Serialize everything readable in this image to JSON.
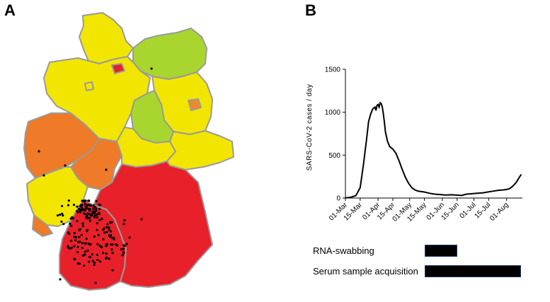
{
  "panels": {
    "a": "A",
    "b": "B"
  },
  "map": {
    "regions": [
      {
        "name": "Schleswig-Holstein",
        "color": "#f2e600"
      },
      {
        "name": "Hamburg",
        "color": "#e8202a"
      },
      {
        "name": "Mecklenburg-Vorpommern",
        "color": "#a8d62e"
      },
      {
        "name": "Lower Saxony",
        "color": "#f2e600"
      },
      {
        "name": "Bremen",
        "color": "#f2e600"
      },
      {
        "name": "Brandenburg",
        "color": "#f2e600"
      },
      {
        "name": "Berlin",
        "color": "#ef8a2a"
      },
      {
        "name": "Saxony-Anhalt",
        "color": "#a8d62e"
      },
      {
        "name": "North Rhine-Westphalia",
        "color": "#ef7a28"
      },
      {
        "name": "Hesse",
        "color": "#ef7a28"
      },
      {
        "name": "Thuringia",
        "color": "#f2e600"
      },
      {
        "name": "Saxony",
        "color": "#f2e600"
      },
      {
        "name": "Rhineland-Palatinate",
        "color": "#f2e600"
      },
      {
        "name": "Saarland",
        "color": "#ef7a28"
      },
      {
        "name": "Baden-Wuerttemberg",
        "color": "#e8202a"
      },
      {
        "name": "Bavaria",
        "color": "#e8202a"
      }
    ]
  },
  "chart_data": {
    "type": "line",
    "title": "",
    "xlabel": "",
    "ylabel": "SARS-CoV-2 cases / day",
    "ylim": [
      0,
      1500
    ],
    "yticks": [
      0,
      500,
      1000,
      1500
    ],
    "ytick_labels": [
      "0",
      "500",
      "1000",
      "1500"
    ],
    "xlim": [
      0,
      168
    ],
    "xticks": [
      0,
      14,
      31,
      45,
      61,
      75,
      92,
      106,
      122,
      136,
      153
    ],
    "xtick_labels": [
      "01-Mar",
      "15-Mar",
      "01-Apr",
      "15-Apr",
      "01-May",
      "15-May",
      "01-Jun",
      "15-Jun",
      "01-Jul",
      "15-Jul",
      "01-Aug"
    ],
    "series": [
      {
        "name": "SARS-CoV-2 cases / day",
        "x": [
          0,
          5,
          10,
          14,
          17,
          20,
          22,
          24,
          26,
          28,
          29,
          30,
          31,
          32,
          33,
          34,
          35,
          36,
          37,
          38,
          40,
          42,
          45,
          48,
          51,
          54,
          57,
          60,
          63,
          66,
          69,
          72,
          75,
          80,
          85,
          90,
          95,
          100,
          105,
          110,
          115,
          120,
          125,
          130,
          135,
          140,
          145,
          150,
          153,
          156,
          159,
          162,
          165,
          167
        ],
        "y": [
          2,
          8,
          30,
          120,
          380,
          680,
          890,
          980,
          1040,
          1060,
          1020,
          1080,
          1090,
          1060,
          1110,
          1100,
          1060,
          980,
          880,
          770,
          660,
          600,
          570,
          520,
          430,
          330,
          240,
          170,
          120,
          95,
          80,
          75,
          70,
          55,
          45,
          40,
          35,
          38,
          35,
          30,
          45,
          50,
          55,
          60,
          70,
          80,
          90,
          95,
          100,
          110,
          140,
          180,
          240,
          275
        ]
      }
    ],
    "periods": [
      {
        "label": "RNA-swabbing",
        "start": 75,
        "end": 106
      },
      {
        "label": "Serum sample acquisition",
        "start": 75,
        "end": 167
      }
    ]
  }
}
